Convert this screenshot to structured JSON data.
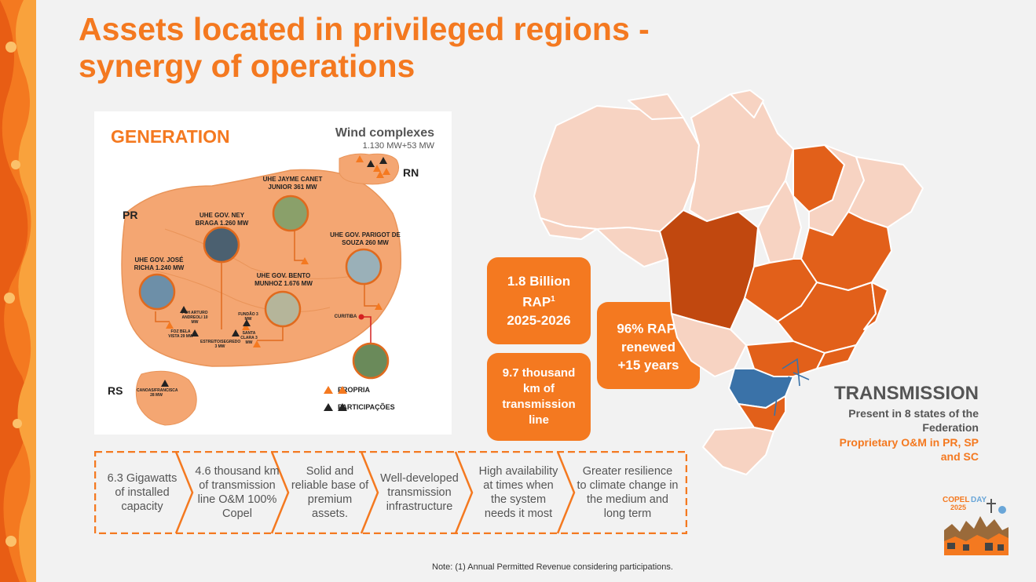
{
  "title": {
    "line1": "Assets located in privileged regions -",
    "line2": "synergy of operations"
  },
  "generation": {
    "heading": "GENERATION",
    "wind_title": "Wind complexes",
    "wind_capacity": "1.130 MW+53 MW",
    "state_labels": {
      "pr": "PR",
      "rn": "RN",
      "rs": "RS"
    },
    "plants": {
      "jayme": "UHE JAYME CANET JUNIOR 361 MW",
      "ney": "UHE GOV. NEY BRAGA 1.260 MW",
      "parigot": "UHE GOV. PARIGOT DE SOUZA 260 MW",
      "jose": "UHE GOV. JOSÉ RICHA 1.240 MW",
      "bento": "UHE GOV. BENTO MUNHOZ 1.676 MW"
    },
    "small": {
      "arturo": "PCH ARTURO ANDREOLI 10 MW",
      "foz": "FOZ BELA VISTA 29 MW",
      "fundao": "FUNDÃO 3 MW",
      "santa": "SANTA CLARA 3 MW",
      "estreito": "ESTREITO/SEGREDO 3 MW",
      "curitiba": "CURITIBA",
      "canoas": "CANOAS/FRANCISCA 28 MW"
    },
    "legend": {
      "propria": "PROPRIA",
      "participacoes": "PARTICIPAÇÕES"
    }
  },
  "stats": {
    "rap_value": "1.8 Billion",
    "rap_label": "RAP",
    "rap_sup": "1",
    "rap_period": "2025-2026",
    "km_line1": "9.7 thousand",
    "km_line2": "km of",
    "km_line3": "transmission",
    "km_line4": "line",
    "renew_pct": "96% RAP",
    "renew_sup": "1",
    "renew_line2": "renewed",
    "renew_line3": "+15 years"
  },
  "transmission": {
    "heading": "TRANSMISSION",
    "present": "Present in 8 states of the Federation",
    "om": "Proprietary O&M in PR, SP and SC"
  },
  "features": [
    "6.3 Gigawatts of installed capacity",
    "4.6 thousand km of transmission line O&M 100% Copel",
    "Solid and reliable base of premium assets.",
    "Well-developed transmission infrastructure",
    "High availability at times when the system needs it most",
    "Greater resilience to climate change in the medium and long term"
  ],
  "note": "Note: (1) Annual Permitted Revenue considering participations.",
  "logo": {
    "line1": "COPEL",
    "line1b": "DAY",
    "year": "2025"
  },
  "colors": {
    "accent": "#f47920",
    "dark_orange": "#c1480f",
    "mid_orange": "#e2601a",
    "light_peach": "#f7d3c2",
    "blue": "#3a72a8"
  }
}
